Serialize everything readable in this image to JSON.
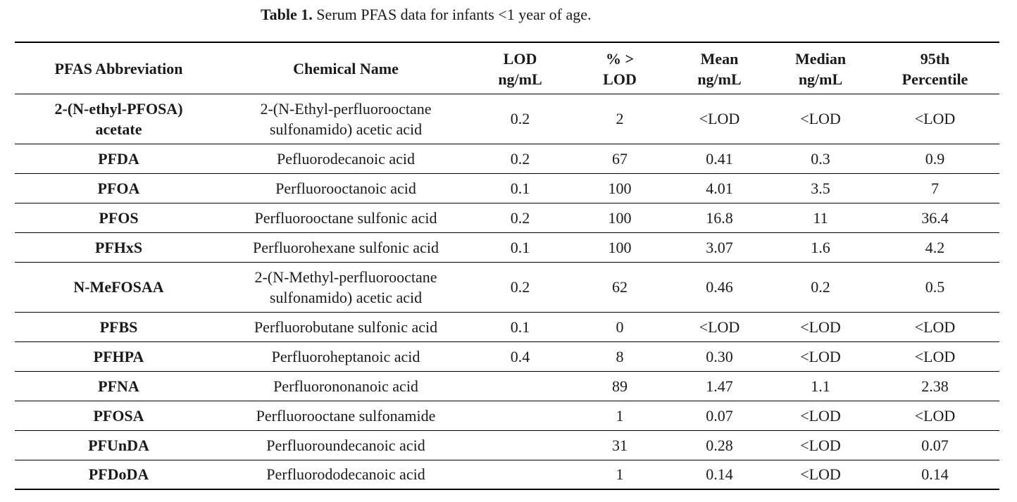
{
  "caption": {
    "label": "Table 1.",
    "text": " Serum PFAS data for infants <1 year of age."
  },
  "table": {
    "headers": [
      "PFAS Abbreviation",
      "Chemical Name",
      "LOD\nng/mL",
      "% >\nLOD",
      "Mean\nng/mL",
      "Median\nng/mL",
      "95th\nPercentile"
    ],
    "rows": [
      [
        "2-(N-ethyl-PFOSA)\nacetate",
        "2-(N-Ethyl-perfluorooctane\nsulfonamido) acetic acid",
        "0.2",
        "2",
        "<LOD",
        "<LOD",
        "<LOD"
      ],
      [
        "PFDA",
        "Pefluorodecanoic acid",
        "0.2",
        "67",
        "0.41",
        "0.3",
        "0.9"
      ],
      [
        "PFOA",
        "Perfluorooctanoic acid",
        "0.1",
        "100",
        "4.01",
        "3.5",
        "7"
      ],
      [
        "PFOS",
        "Perfluorooctane sulfonic acid",
        "0.2",
        "100",
        "16.8",
        "11",
        "36.4"
      ],
      [
        "PFHxS",
        "Perfluorohexane sulfonic acid",
        "0.1",
        "100",
        "3.07",
        "1.6",
        "4.2"
      ],
      [
        "N-MeFOSAA",
        "2-(N-Methyl-perfluorooctane\nsulfonamido) acetic acid",
        "0.2",
        "62",
        "0.46",
        "0.2",
        "0.5"
      ],
      [
        "PFBS",
        "Perfluorobutane sulfonic acid",
        "0.1",
        "0",
        "<LOD",
        "<LOD",
        "<LOD"
      ],
      [
        "PFHPA",
        "Perfluoroheptanoic acid",
        "0.4",
        "8",
        "0.30",
        "<LOD",
        "<LOD"
      ],
      [
        "PFNA",
        "Perfluorononanoic acid",
        "",
        "89",
        "1.47",
        "1.1",
        "2.38"
      ],
      [
        "PFOSA",
        "Perfluorooctane sulfonamide",
        "",
        "1",
        "0.07",
        "<LOD",
        "<LOD"
      ],
      [
        "PFUnDA",
        "Perfluoroundecanoic acid",
        "",
        "31",
        "0.28",
        "<LOD",
        "0.07"
      ],
      [
        "PFDoDA",
        "Perfluorododecanoic acid",
        "",
        "1",
        "0.14",
        "<LOD",
        "0.14"
      ]
    ]
  }
}
